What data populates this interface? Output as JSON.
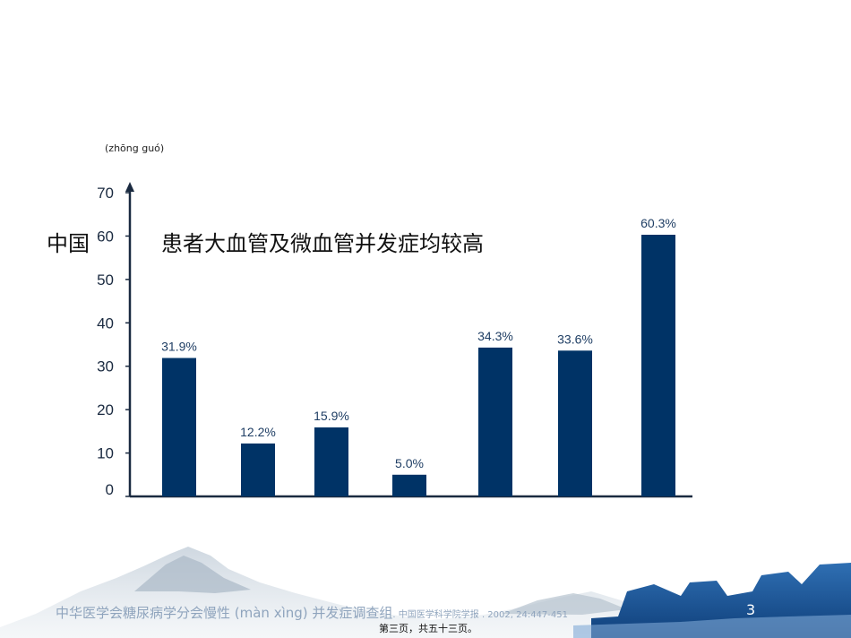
{
  "slide": {
    "pinyin": "(zhōng guó)",
    "side_label": "中国",
    "title": "患者大血管及微血管并发症均较高",
    "footer_citation": "中华医学会糖尿病学分会慢性 (màn xìng) 并发症调查组",
    "footer_ref": ". 中国医学科学院学报 . 2002, 24:447-451",
    "page_number": "3",
    "page_footer": "第三页，共五十三页。"
  },
  "chart_data": {
    "type": "bar",
    "categories": [
      "",
      "",
      "",
      "",
      "",
      "",
      ""
    ],
    "values": [
      31.9,
      12.2,
      15.9,
      5.0,
      34.3,
      33.6,
      60.3
    ],
    "bar_value_labels": [
      "31.9%",
      "12.2%",
      "15.9%",
      "5.0%",
      "34.3%",
      "33.6%",
      "60.3%"
    ],
    "yticks": [
      0,
      10,
      20,
      30,
      40,
      50,
      60,
      70
    ],
    "ylim": [
      0,
      70
    ],
    "bar_color": "#003366",
    "axis_color": "#1a2a40",
    "label_color": "#1f3e64",
    "grid": false,
    "legend": "none"
  }
}
